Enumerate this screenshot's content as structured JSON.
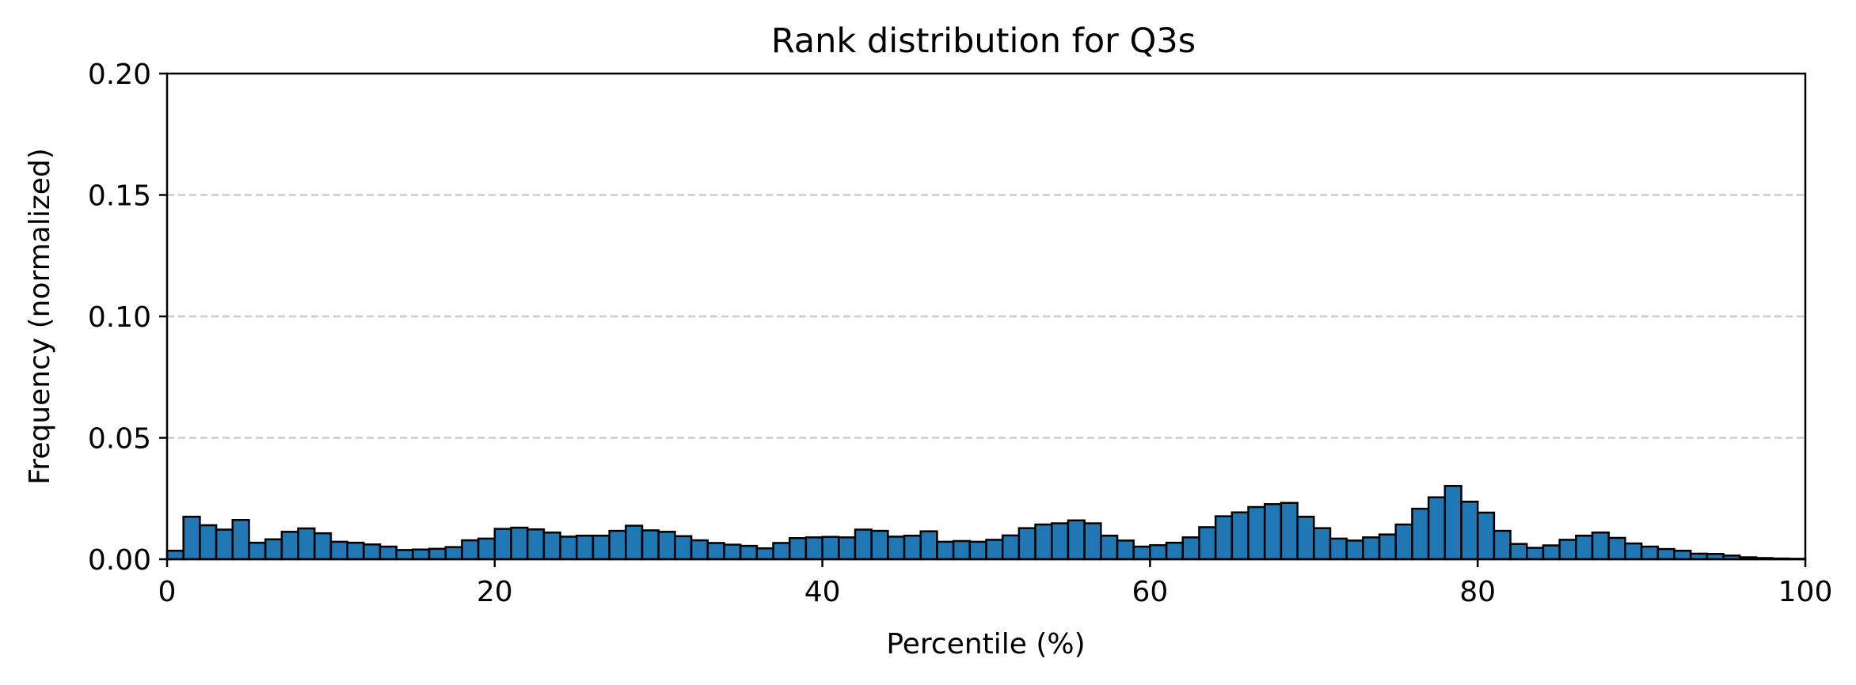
{
  "chart_data": {
    "type": "bar",
    "title": "Rank distribution for Q3s",
    "xlabel": "Percentile (%)",
    "ylabel": "Frequency (normalized)",
    "xlim": [
      0,
      100
    ],
    "ylim": [
      0,
      0.2
    ],
    "x_ticks": [
      0,
      20,
      40,
      60,
      80,
      100
    ],
    "y_ticks": [
      0.0,
      0.05,
      0.1,
      0.15,
      0.2
    ],
    "x_tick_labels": [
      "0",
      "20",
      "40",
      "60",
      "80",
      "100"
    ],
    "y_tick_labels": [
      "0.00",
      "0.05",
      "0.10",
      "0.15",
      "0.20"
    ],
    "bin_width": 1,
    "bin_starts": [
      0,
      1,
      2,
      3,
      4,
      5,
      6,
      7,
      8,
      9,
      10,
      11,
      12,
      13,
      14,
      15,
      16,
      17,
      18,
      19,
      20,
      21,
      22,
      23,
      24,
      25,
      26,
      27,
      28,
      29,
      30,
      31,
      32,
      33,
      34,
      35,
      36,
      37,
      38,
      39,
      40,
      41,
      42,
      43,
      44,
      45,
      46,
      47,
      48,
      49,
      50,
      51,
      52,
      53,
      54,
      55,
      56,
      57,
      58,
      59,
      60,
      61,
      62,
      63,
      64,
      65,
      66,
      67,
      68,
      69,
      70,
      71,
      72,
      73,
      74,
      75,
      76,
      77,
      78,
      79,
      80,
      81,
      82,
      83,
      84,
      85,
      86,
      87,
      88,
      89,
      90,
      91,
      92,
      93,
      94,
      95,
      96,
      97,
      98,
      99
    ],
    "values": [
      0.0035,
      0.0175,
      0.014,
      0.0122,
      0.0162,
      0.0068,
      0.0082,
      0.0113,
      0.0127,
      0.0107,
      0.0072,
      0.0068,
      0.0061,
      0.0052,
      0.0038,
      0.004,
      0.0043,
      0.005,
      0.0078,
      0.0085,
      0.0125,
      0.013,
      0.0123,
      0.011,
      0.0093,
      0.0097,
      0.0097,
      0.0117,
      0.0138,
      0.0119,
      0.0113,
      0.0095,
      0.0078,
      0.0067,
      0.006,
      0.0055,
      0.0045,
      0.0067,
      0.0087,
      0.009,
      0.0092,
      0.009,
      0.0122,
      0.0117,
      0.0093,
      0.0097,
      0.0115,
      0.0072,
      0.0075,
      0.0072,
      0.008,
      0.0098,
      0.0128,
      0.0143,
      0.0148,
      0.016,
      0.0148,
      0.0097,
      0.0077,
      0.0052,
      0.0058,
      0.0068,
      0.009,
      0.0132,
      0.0177,
      0.0193,
      0.0215,
      0.0227,
      0.0232,
      0.0175,
      0.0128,
      0.0085,
      0.0077,
      0.009,
      0.0102,
      0.0143,
      0.0208,
      0.0255,
      0.0302,
      0.0237,
      0.0192,
      0.0117,
      0.0063,
      0.0047,
      0.0057,
      0.008,
      0.0097,
      0.011,
      0.0088,
      0.0065,
      0.0052,
      0.0042,
      0.0035,
      0.0023,
      0.0022,
      0.0015,
      0.0008,
      0.0005,
      0.0003,
      0.0002
    ],
    "bar_color": "#1f77b4",
    "bar_edge_color": "#000000",
    "grid": "y-dashed",
    "grid_color": "#cccccc"
  }
}
